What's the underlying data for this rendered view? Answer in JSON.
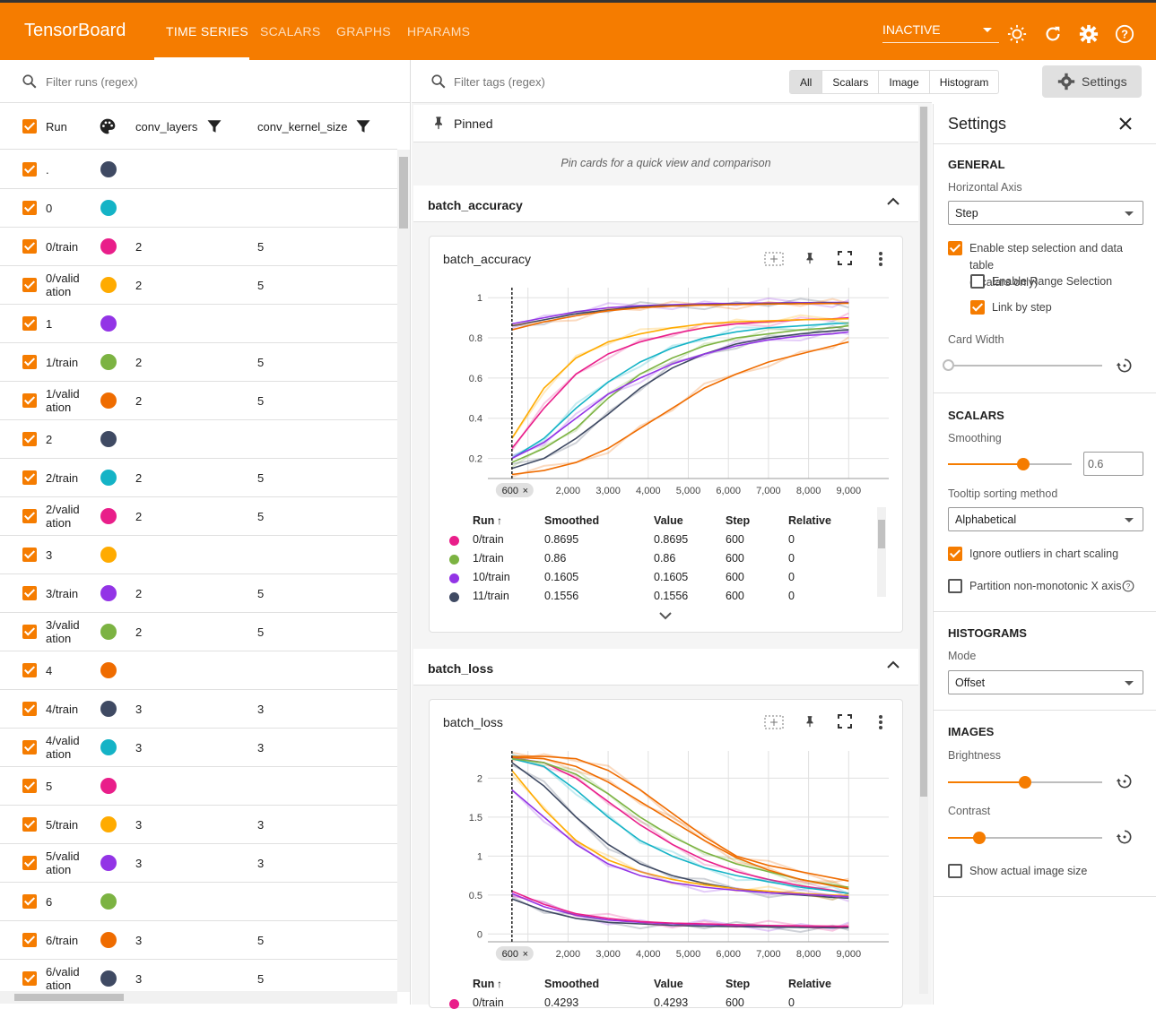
{
  "app": {
    "brand": "TensorBoard",
    "nav": [
      "TIME SERIES",
      "SCALARS",
      "GRAPHS",
      "HPARAMS"
    ],
    "active_tab": "TIME SERIES",
    "status_select": "INACTIVE"
  },
  "runs_panel": {
    "filter_placeholder": "Filter runs (regex)",
    "columns": [
      "Run",
      "conv_layers",
      "conv_kernel_size"
    ],
    "rows": [
      {
        "name": ".",
        "color": "#3f4a63",
        "conv_layers": "",
        "conv_kernel_size": ""
      },
      {
        "name": "0",
        "color": "#14b3c6",
        "conv_layers": "",
        "conv_kernel_size": ""
      },
      {
        "name": "0/train",
        "color": "#e91e8a",
        "conv_layers": "2",
        "conv_kernel_size": "5"
      },
      {
        "name": "0/valid\nation",
        "color": "#ffab00",
        "conv_layers": "2",
        "conv_kernel_size": "5"
      },
      {
        "name": "1",
        "color": "#9334e6",
        "conv_layers": "",
        "conv_kernel_size": ""
      },
      {
        "name": "1/train",
        "color": "#7cb342",
        "conv_layers": "2",
        "conv_kernel_size": "5"
      },
      {
        "name": "1/valid\nation",
        "color": "#ef6c00",
        "conv_layers": "2",
        "conv_kernel_size": "5"
      },
      {
        "name": "2",
        "color": "#3f4a63",
        "conv_layers": "",
        "conv_kernel_size": ""
      },
      {
        "name": "2/train",
        "color": "#14b3c6",
        "conv_layers": "2",
        "conv_kernel_size": "5"
      },
      {
        "name": "2/valid\nation",
        "color": "#e91e8a",
        "conv_layers": "2",
        "conv_kernel_size": "5"
      },
      {
        "name": "3",
        "color": "#ffab00",
        "conv_layers": "",
        "conv_kernel_size": ""
      },
      {
        "name": "3/train",
        "color": "#9334e6",
        "conv_layers": "2",
        "conv_kernel_size": "5"
      },
      {
        "name": "3/valid\nation",
        "color": "#7cb342",
        "conv_layers": "2",
        "conv_kernel_size": "5"
      },
      {
        "name": "4",
        "color": "#ef6c00",
        "conv_layers": "",
        "conv_kernel_size": ""
      },
      {
        "name": "4/train",
        "color": "#3f4a63",
        "conv_layers": "3",
        "conv_kernel_size": "3"
      },
      {
        "name": "4/valid\nation",
        "color": "#14b3c6",
        "conv_layers": "3",
        "conv_kernel_size": "3"
      },
      {
        "name": "5",
        "color": "#e91e8a",
        "conv_layers": "",
        "conv_kernel_size": ""
      },
      {
        "name": "5/train",
        "color": "#ffab00",
        "conv_layers": "3",
        "conv_kernel_size": "3"
      },
      {
        "name": "5/valid\nation",
        "color": "#9334e6",
        "conv_layers": "3",
        "conv_kernel_size": "3"
      },
      {
        "name": "6",
        "color": "#7cb342",
        "conv_layers": "",
        "conv_kernel_size": ""
      },
      {
        "name": "6/train",
        "color": "#ef6c00",
        "conv_layers": "3",
        "conv_kernel_size": "5"
      },
      {
        "name": "6/valid\nation",
        "color": "#3f4a63",
        "conv_layers": "3",
        "conv_kernel_size": "5"
      }
    ]
  },
  "main": {
    "filter_placeholder": "Filter tags (regex)",
    "type_filters": [
      "All",
      "Scalars",
      "Image",
      "Histogram"
    ],
    "selected_filter": "All",
    "settings_button": "Settings",
    "pinned_title": "Pinned",
    "pinned_hint": "Pin cards for a quick view and comparison",
    "groups": [
      {
        "group_title": "batch_accuracy",
        "card_title": "batch_accuracy",
        "step_badge": "600",
        "table_headers": [
          "Run",
          "Smoothed",
          "Value",
          "Step",
          "Relative"
        ],
        "rows": [
          {
            "run": "0/train",
            "color": "#e91e8a",
            "smoothed": "0.8695",
            "value": "0.8695",
            "step": "600",
            "relative": "0"
          },
          {
            "run": "1/train",
            "color": "#7cb342",
            "smoothed": "0.86",
            "value": "0.86",
            "step": "600",
            "relative": "0"
          },
          {
            "run": "10/train",
            "color": "#9334e6",
            "smoothed": "0.1605",
            "value": "0.1605",
            "step": "600",
            "relative": "0"
          },
          {
            "run": "11/train",
            "color": "#3f4a63",
            "smoothed": "0.1556",
            "value": "0.1556",
            "step": "600",
            "relative": "0"
          }
        ]
      },
      {
        "group_title": "batch_loss",
        "card_title": "batch_loss",
        "step_badge": "600",
        "table_headers": [
          "Run",
          "Smoothed",
          "Value",
          "Step",
          "Relative"
        ],
        "rows": [
          {
            "run": "0/train",
            "color": "#e91e8a",
            "smoothed": "0.4293",
            "value": "0.4293",
            "step": "600",
            "relative": "0"
          }
        ]
      }
    ]
  },
  "chart_data": [
    {
      "type": "line",
      "title": "batch_accuracy",
      "xlabel": "",
      "ylabel": "",
      "x_ticks": [
        "00",
        "2,000",
        "3,000",
        "4,000",
        "5,000",
        "6,000",
        "7,000",
        "8,000",
        "9,000"
      ],
      "y_ticks": [
        "0.2",
        "0.4",
        "0.6",
        "0.8",
        "1"
      ],
      "xlim": [
        0,
        10000
      ],
      "ylim": [
        0.1,
        1.05
      ],
      "grid": true,
      "step_marker": 600,
      "x": [
        600,
        1400,
        2200,
        3000,
        3800,
        4600,
        5400,
        6200,
        7000,
        7800,
        8600,
        9000
      ],
      "series": [
        {
          "color": "#9334e6",
          "values": [
            0.87,
            0.9,
            0.93,
            0.95,
            0.96,
            0.965,
            0.97,
            0.972,
            0.974,
            0.975,
            0.976,
            0.977
          ]
        },
        {
          "color": "#3f4a63",
          "values": [
            0.86,
            0.89,
            0.92,
            0.94,
            0.955,
            0.96,
            0.965,
            0.968,
            0.97,
            0.972,
            0.973,
            0.974
          ]
        },
        {
          "color": "#ef6c00",
          "values": [
            0.84,
            0.88,
            0.91,
            0.935,
            0.95,
            0.958,
            0.963,
            0.966,
            0.968,
            0.97,
            0.971,
            0.972
          ]
        },
        {
          "color": "#e91e8a",
          "values": [
            0.25,
            0.45,
            0.62,
            0.72,
            0.78,
            0.82,
            0.85,
            0.87,
            0.88,
            0.89,
            0.895,
            0.9
          ]
        },
        {
          "color": "#14b3c6",
          "values": [
            0.2,
            0.3,
            0.45,
            0.58,
            0.68,
            0.75,
            0.8,
            0.83,
            0.85,
            0.86,
            0.87,
            0.875
          ]
        },
        {
          "color": "#7cb342",
          "values": [
            0.18,
            0.25,
            0.35,
            0.5,
            0.62,
            0.7,
            0.76,
            0.8,
            0.82,
            0.84,
            0.85,
            0.86
          ]
        },
        {
          "color": "#ffab00",
          "values": [
            0.3,
            0.55,
            0.7,
            0.78,
            0.82,
            0.85,
            0.87,
            0.88,
            0.885,
            0.89,
            0.893,
            0.895
          ]
        },
        {
          "color": "#3f4a63",
          "values": [
            0.15,
            0.2,
            0.3,
            0.42,
            0.55,
            0.65,
            0.72,
            0.77,
            0.8,
            0.82,
            0.835,
            0.84
          ]
        },
        {
          "color": "#ef6c00",
          "values": [
            0.12,
            0.14,
            0.18,
            0.25,
            0.35,
            0.45,
            0.55,
            0.62,
            0.68,
            0.72,
            0.76,
            0.78
          ]
        },
        {
          "color": "#9334e6",
          "values": [
            0.2,
            0.28,
            0.4,
            0.52,
            0.6,
            0.67,
            0.72,
            0.76,
            0.79,
            0.81,
            0.82,
            0.83
          ]
        }
      ]
    },
    {
      "type": "line",
      "title": "batch_loss",
      "xlabel": "",
      "ylabel": "",
      "x_ticks": [
        "00",
        "2,000",
        "3,000",
        "4,000",
        "5,000",
        "6,000",
        "7,000",
        "8,000",
        "9,000"
      ],
      "y_ticks": [
        "0",
        "0.5",
        "1",
        "1.5",
        "2"
      ],
      "xlim": [
        0,
        10000
      ],
      "ylim": [
        -0.1,
        2.35
      ],
      "grid": true,
      "step_marker": 600,
      "x": [
        600,
        1400,
        2200,
        3000,
        3800,
        4600,
        5400,
        6200,
        7000,
        7800,
        8600,
        9000
      ],
      "series": [
        {
          "color": "#ef6c00",
          "values": [
            2.28,
            2.28,
            2.25,
            2.1,
            1.85,
            1.55,
            1.25,
            1.0,
            0.88,
            0.8,
            0.72,
            0.68
          ]
        },
        {
          "color": "#e91e8a",
          "values": [
            2.26,
            2.2,
            2.0,
            1.7,
            1.4,
            1.15,
            0.95,
            0.8,
            0.7,
            0.62,
            0.56,
            0.52
          ]
        },
        {
          "color": "#14b3c6",
          "values": [
            2.25,
            2.15,
            1.85,
            1.5,
            1.2,
            1.0,
            0.85,
            0.75,
            0.67,
            0.6,
            0.55,
            0.52
          ]
        },
        {
          "color": "#3f4a63",
          "values": [
            2.2,
            1.9,
            1.5,
            1.15,
            0.9,
            0.75,
            0.65,
            0.58,
            0.53,
            0.5,
            0.47,
            0.46
          ]
        },
        {
          "color": "#7cb342",
          "values": [
            2.25,
            2.2,
            2.05,
            1.8,
            1.5,
            1.25,
            1.05,
            0.9,
            0.8,
            0.7,
            0.63,
            0.6
          ]
        },
        {
          "color": "#ffab00",
          "values": [
            2.1,
            1.6,
            1.2,
            0.95,
            0.8,
            0.7,
            0.63,
            0.58,
            0.55,
            0.52,
            0.5,
            0.49
          ]
        },
        {
          "color": "#9334e6",
          "values": [
            1.85,
            1.5,
            1.15,
            0.9,
            0.75,
            0.66,
            0.6,
            0.56,
            0.53,
            0.51,
            0.49,
            0.48
          ]
        },
        {
          "color": "#ef6c00",
          "values": [
            2.27,
            2.25,
            2.15,
            1.95,
            1.7,
            1.45,
            1.2,
            0.98,
            0.82,
            0.7,
            0.62,
            0.58
          ]
        },
        {
          "color": "#9334e6",
          "values": [
            0.52,
            0.35,
            0.24,
            0.18,
            0.15,
            0.13,
            0.12,
            0.11,
            0.1,
            0.1,
            0.095,
            0.09
          ]
        },
        {
          "color": "#3f4a63",
          "values": [
            0.45,
            0.3,
            0.2,
            0.15,
            0.13,
            0.11,
            0.1,
            0.095,
            0.09,
            0.085,
            0.08,
            0.08
          ]
        },
        {
          "color": "#e91e8a",
          "values": [
            0.55,
            0.38,
            0.26,
            0.2,
            0.16,
            0.14,
            0.13,
            0.12,
            0.11,
            0.105,
            0.1,
            0.1
          ]
        }
      ]
    }
  ],
  "settings": {
    "title": "Settings",
    "general": "GENERAL",
    "horizontal_axis_label": "Horizontal Axis",
    "horizontal_axis_value": "Step",
    "step_selection": "Enable step selection and data table",
    "step_selection_note": "(Scalars only)",
    "range_selection": "Enable Range Selection",
    "link_by_step": "Link by step",
    "card_width": "Card Width",
    "scalars": "SCALARS",
    "smoothing": "Smoothing",
    "smoothing_value": "0.6",
    "tooltip_sort": "Tooltip sorting method",
    "tooltip_sort_value": "Alphabetical",
    "ignore_outliers": "Ignore outliers in chart scaling",
    "partition": "Partition non-monotonic X axis",
    "histograms": "HISTOGRAMS",
    "mode": "Mode",
    "mode_value": "Offset",
    "images": "IMAGES",
    "brightness": "Brightness",
    "contrast": "Contrast",
    "show_actual": "Show actual image size",
    "accent": "#f57c00"
  }
}
